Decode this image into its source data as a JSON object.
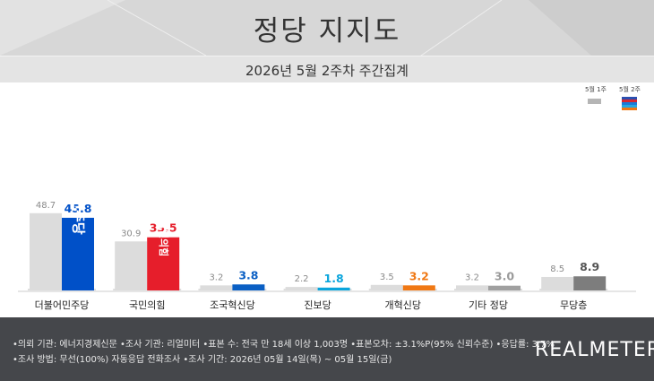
{
  "header": {
    "title": "정당 지지도"
  },
  "subheader": {
    "subtitle": "2026년 5월 2주차 주간집계"
  },
  "chart_data": {
    "type": "bar",
    "categories": [
      "더불어민주당",
      "국민의힘",
      "조국혁신당",
      "진보당",
      "개혁신당",
      "기타 정당",
      "무당층"
    ],
    "series": [
      {
        "name": "5월 1주",
        "values": [
          48.7,
          30.9,
          3.2,
          2.2,
          3.5,
          3.2,
          8.5
        ]
      },
      {
        "name": "5월 2주",
        "values": [
          45.8,
          33.5,
          3.8,
          1.8,
          3.2,
          3.0,
          8.9
        ]
      }
    ],
    "ylim": [
      0,
      55
    ],
    "grid": false,
    "legend": "top-right",
    "colors": {
      "prev": "#dcdcdc",
      "current": [
        "#0050c8",
        "#e61e2b",
        "#0a5fc4",
        "#0aa5dc",
        "#f07814",
        "#a0a0a0",
        "#7d7d7d"
      ],
      "prev_label": "#8a8a8a",
      "current_label": [
        "#0050c8",
        "#e61e2b",
        "#0a5fc4",
        "#0aa5dc",
        "#f07814",
        "#9a9a9a",
        "#555555"
      ]
    },
    "bar_logos": [
      "민주당",
      "국민의힘"
    ]
  },
  "footer": {
    "notes": [
      "•의뢰 기관: 에너지경제신문  •조사 기관: 리얼미터  •표본 수: 전국 만 18세 이상 1,003명  •표본오차: ±3.1%P(95% 신뢰수준)  •응답률: 3.7%",
      "•조사 방법: 무선(100%) 자동응답 전화조사  •조사 기간: 2026년 05월 14일(목) ~ 05월 15일(금)"
    ],
    "logo": "REALMETER"
  }
}
